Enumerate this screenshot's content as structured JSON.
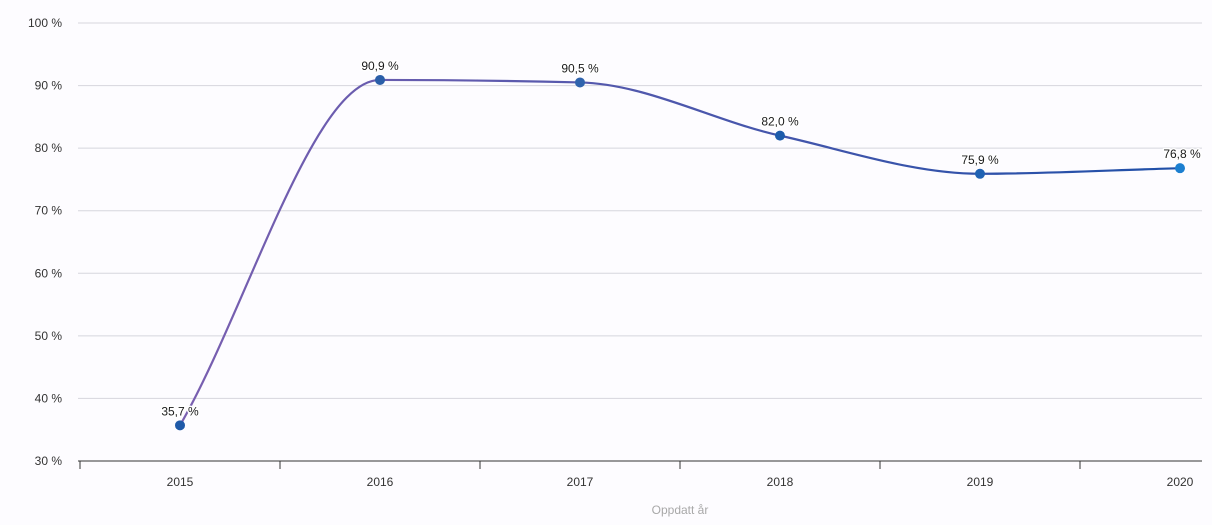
{
  "chart_data": {
    "type": "line",
    "title": "",
    "xlabel": "Oppdatt år",
    "ylabel": "",
    "categories": [
      "2015",
      "2016",
      "2017",
      "2018",
      "2019",
      "2020"
    ],
    "values": [
      35.7,
      90.9,
      90.5,
      82.0,
      75.9,
      76.8
    ],
    "data_labels": [
      "35,7 %",
      "90,9 %",
      "90,5 %",
      "82,0 %",
      "75,9 %",
      "76,8 %"
    ],
    "y_ticks": [
      30,
      40,
      50,
      60,
      70,
      80,
      90,
      100
    ],
    "y_tick_labels": [
      "30 %",
      "40 %",
      "50 %",
      "60 %",
      "70 %",
      "80 %",
      "90 %",
      "100 %"
    ],
    "ylim": [
      30,
      100
    ],
    "grid": true,
    "legend": "none",
    "line_gradient": [
      "#7a5fb0",
      "#1f4fa8"
    ],
    "marker_colors": [
      "#1f5aa8",
      "#2a5ea8",
      "#2f63ad",
      "#1d5cab",
      "#1f62b3",
      "#1c7fd0"
    ]
  }
}
